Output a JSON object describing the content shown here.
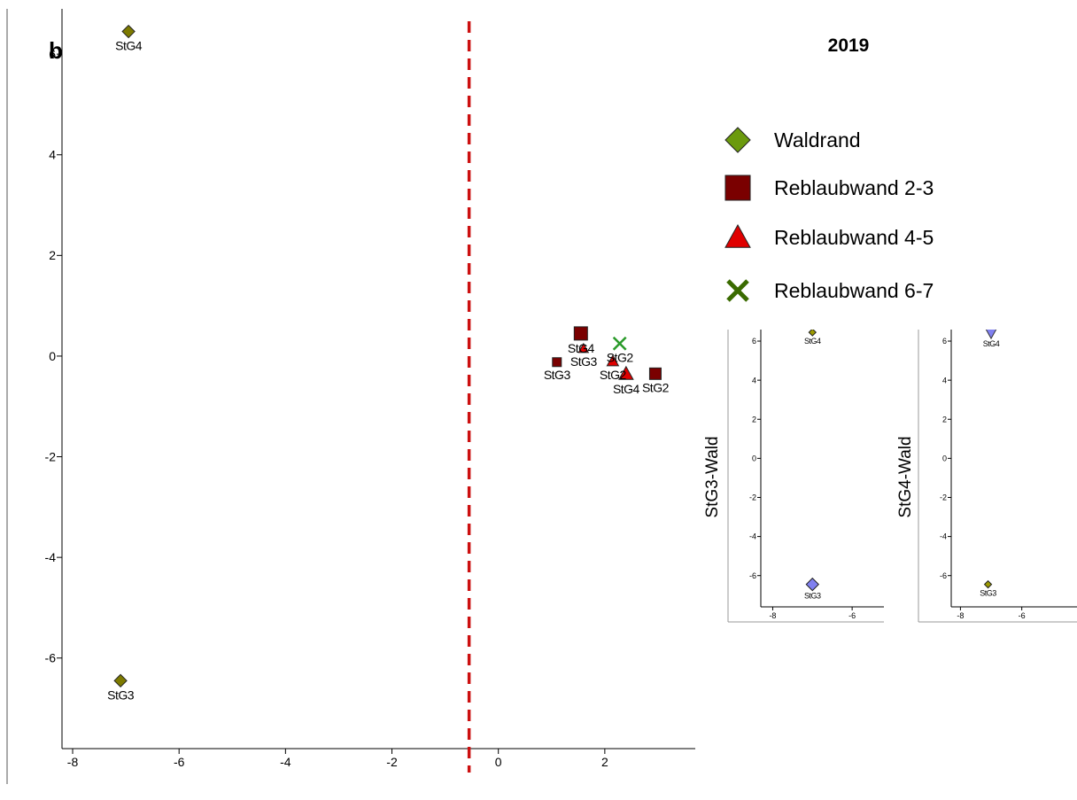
{
  "panel_label": "b",
  "title": "2019",
  "legend": {
    "items": [
      {
        "label": "Waldrand",
        "marker": "diamond",
        "color": "#6b9a0e"
      },
      {
        "label": "Reblaubwand 2-3",
        "marker": "square",
        "color": "#7a0000"
      },
      {
        "label": "Reblaubwand 4-5",
        "marker": "triangle",
        "color": "#e00000"
      },
      {
        "label": "Reblaubwand 6-7",
        "marker": "x",
        "color": "#3a6b00"
      }
    ]
  },
  "chart_data": [
    {
      "id": "main",
      "type": "scatter",
      "xlim": [
        -8.2,
        3.7
      ],
      "ylim": [
        -7.8,
        6.9
      ],
      "xticks": [
        -8,
        -6,
        -4,
        -2,
        0,
        2
      ],
      "yticks": [
        -6,
        -4,
        -2,
        0,
        2,
        4,
        6
      ],
      "reference_line": {
        "x": -0.55,
        "style": "dashed",
        "color": "#cc1010"
      },
      "points": [
        {
          "x": -6.95,
          "y": 6.45,
          "marker": "diamond",
          "color": "#7d7a00",
          "label": "StG4",
          "label_pos": "below",
          "size": 14
        },
        {
          "x": -7.1,
          "y": -6.45,
          "marker": "diamond",
          "color": "#7d7a00",
          "label": "StG3",
          "label_pos": "below",
          "size": 14
        },
        {
          "x": 1.55,
          "y": 0.45,
          "marker": "square",
          "color": "#7a0000",
          "label": "StG4",
          "label_pos": "below",
          "size": 15
        },
        {
          "x": 1.1,
          "y": -0.12,
          "marker": "square",
          "color": "#7a0000",
          "label": "StG3",
          "label_pos": "below",
          "size": 10
        },
        {
          "x": 2.95,
          "y": -0.35,
          "marker": "square",
          "color": "#7a0000",
          "label": "StG2",
          "label_pos": "below",
          "size": 13
        },
        {
          "x": 1.6,
          "y": 0.15,
          "marker": "triangle",
          "color": "#e00000",
          "label": "StG3",
          "label_pos": "below",
          "size": 11
        },
        {
          "x": 2.15,
          "y": -0.1,
          "marker": "triangle",
          "color": "#e00000",
          "label": "StG2",
          "label_pos": "below",
          "size": 13
        },
        {
          "x": 2.4,
          "y": -0.35,
          "marker": "triangle",
          "color": "#e00000",
          "label": "StG4",
          "label_pos": "below",
          "size": 16
        },
        {
          "x": 2.28,
          "y": 0.25,
          "marker": "x",
          "color": "#2a9a2a",
          "label": "StG2",
          "label_pos": "below",
          "size": 14
        }
      ]
    },
    {
      "id": "inset-stg3",
      "type": "scatter",
      "ylabel": "StG3-Wald",
      "xlim": [
        -8.3,
        -5.2
      ],
      "ylim": [
        -7.6,
        6.5
      ],
      "xticks": [
        -8,
        -6
      ],
      "yticks": [
        -6,
        -4,
        -2,
        0,
        2,
        4,
        6
      ],
      "points": [
        {
          "x": -7.0,
          "y": 6.45,
          "marker": "diamond",
          "color": "#9c9a00",
          "label": "StG4",
          "label_pos": "below",
          "size": 8
        },
        {
          "x": -7.0,
          "y": -6.45,
          "marker": "diamond",
          "color": "#8080f0",
          "label": "StG3",
          "label_pos": "below",
          "size": 14
        }
      ]
    },
    {
      "id": "inset-stg4",
      "type": "scatter",
      "ylabel": "StG4-Wald",
      "xlim": [
        -8.3,
        -4.2
      ],
      "ylim": [
        -7.6,
        6.5
      ],
      "xticks": [
        -8,
        -6
      ],
      "yticks": [
        -6,
        -4,
        -2,
        0,
        2,
        4,
        6
      ],
      "points": [
        {
          "x": -7.0,
          "y": 6.45,
          "marker": "triangle-down",
          "color": "#8080f0",
          "label": "StG4",
          "label_pos": "below",
          "size": 14
        },
        {
          "x": -7.1,
          "y": -6.45,
          "marker": "diamond",
          "color": "#9c9a00",
          "label": "StG3",
          "label_pos": "below",
          "size": 8
        }
      ]
    }
  ]
}
